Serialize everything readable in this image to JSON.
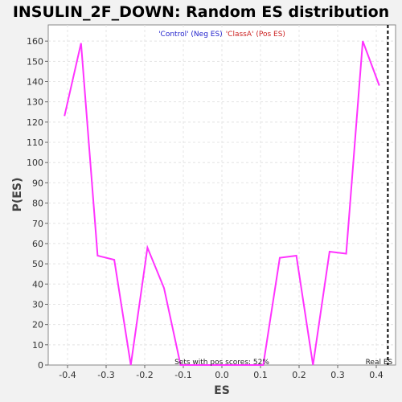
{
  "chart_data": {
    "type": "line",
    "title": "INSULIN_2F_DOWN: Random ES distribution",
    "xlabel": "ES",
    "ylabel": "P(ES)",
    "xlim": [
      -0.45,
      0.45
    ],
    "ylim": [
      0,
      168
    ],
    "x_ticks": [
      -0.4,
      -0.3,
      -0.2,
      -0.1,
      0.0,
      0.1,
      0.2,
      0.3,
      0.4
    ],
    "x_tick_labels": [
      "-0.4",
      "-0.3",
      "-0.2",
      "-0.1",
      "0.0",
      "0.1",
      "0.2",
      "0.3",
      "0.4"
    ],
    "y_ticks": [
      0,
      10,
      20,
      30,
      40,
      50,
      60,
      70,
      80,
      90,
      100,
      110,
      120,
      130,
      140,
      150,
      160
    ],
    "y_tick_labels": [
      "0",
      "10",
      "20",
      "30",
      "40",
      "50",
      "60",
      "70",
      "80",
      "90",
      "100",
      "110",
      "120",
      "130",
      "140",
      "150",
      "160"
    ],
    "grid": true,
    "legend": {
      "placement": "top-center",
      "entries": [
        {
          "label": "'Control' (Neg ES)",
          "color": "#2222cc"
        },
        {
          "label": "'ClassA' (Pos ES)",
          "color": "#cc2222"
        }
      ]
    },
    "series": [
      {
        "color": "#ff33ff",
        "x": [
          -0.408,
          -0.365,
          -0.322,
          -0.279,
          -0.236,
          -0.193,
          -0.15,
          -0.107,
          -0.064,
          -0.021,
          0.021,
          0.064,
          0.107,
          0.15,
          0.193,
          0.236,
          0.279,
          0.322,
          0.365,
          0.408
        ],
        "y": [
          123,
          159,
          54,
          52,
          0,
          58,
          38,
          0,
          0,
          0,
          0,
          0,
          0,
          53,
          54,
          0,
          56,
          55,
          160,
          138
        ]
      }
    ],
    "real_es": {
      "x": 0.43,
      "label": "Real ES"
    },
    "annotation": "Sets with pos scores: 52%",
    "colors": {
      "background": "#f2f2f2",
      "plot_background": "#ffffff",
      "line": "#ff33ff",
      "grid": "#e4e4e4"
    }
  }
}
